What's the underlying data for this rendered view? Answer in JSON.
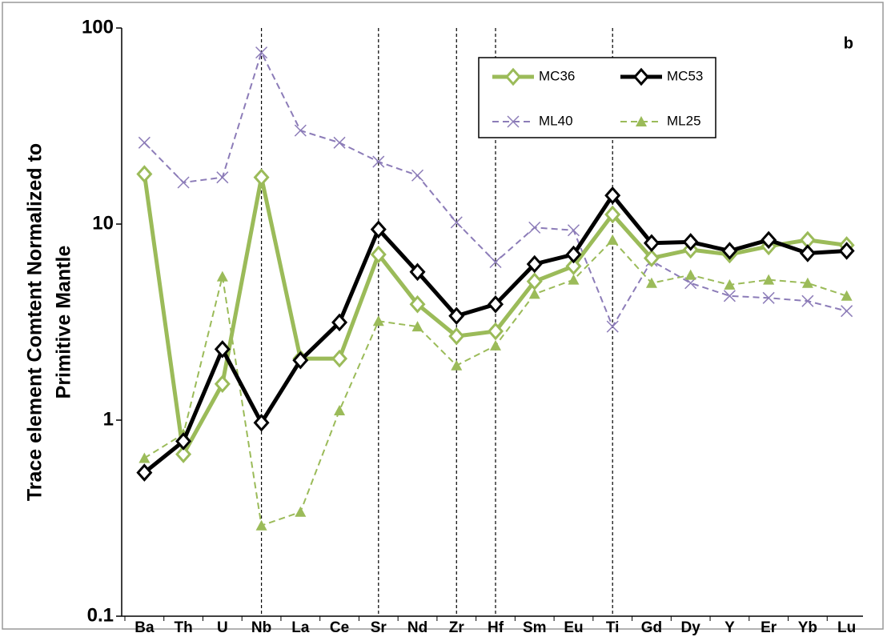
{
  "chart_data": {
    "type": "line",
    "ylabel": [
      "Trace element Comtent Normalized to",
      "Primitive Mantle"
    ],
    "annotation": "b",
    "categories": [
      "Ba",
      "Th",
      "U",
      "Nb",
      "La",
      "Ce",
      "Sr",
      "Nd",
      "Zr",
      "Hf",
      "Sm",
      "Eu",
      "Ti",
      "Gd",
      "Dy",
      "Y",
      "Er",
      "Yb",
      "Lu"
    ],
    "log_scale": true,
    "ylim": [
      0.1,
      100
    ],
    "yticks": [
      0.1,
      1,
      10,
      100
    ],
    "dashed_category_lines": [
      "Nb",
      "Sr",
      "Zr",
      "Hf",
      "Ti"
    ],
    "legend_position": "upper right",
    "series": [
      {
        "name": "MC36",
        "color": "#9bbb59",
        "dash": false,
        "marker": "diamond",
        "width": 5,
        "values": [
          18,
          0.67,
          1.53,
          17.3,
          2.06,
          2.06,
          7.0,
          3.9,
          2.68,
          2.84,
          5.1,
          6.1,
          11.2,
          6.7,
          7.4,
          7.0,
          7.7,
          8.3,
          7.8
        ]
      },
      {
        "name": "MC53",
        "color": "#000000",
        "dash": false,
        "marker": "diamond",
        "width": 5,
        "values": [
          0.54,
          0.78,
          2.3,
          0.97,
          2.02,
          3.15,
          9.4,
          5.7,
          3.4,
          3.9,
          6.25,
          7.0,
          14.0,
          8.0,
          8.1,
          7.3,
          8.3,
          7.1,
          7.3
        ]
      },
      {
        "name": "ML40",
        "color": "#8c7cb8",
        "dash": true,
        "marker": "x",
        "width": 2,
        "values": [
          26,
          16.3,
          17.3,
          75,
          30,
          26,
          20.8,
          17.7,
          10.2,
          6.4,
          9.6,
          9.3,
          3.0,
          6.5,
          5.0,
          4.3,
          4.2,
          4.05,
          3.6
        ]
      },
      {
        "name": "ML25",
        "color": "#9bbb59",
        "dash": true,
        "marker": "triangle",
        "width": 2,
        "values": [
          0.64,
          0.85,
          5.4,
          0.29,
          0.34,
          1.12,
          3.2,
          3.0,
          1.9,
          2.4,
          4.4,
          5.2,
          8.3,
          5.0,
          5.5,
          4.9,
          5.2,
          5.0,
          4.3
        ]
      }
    ]
  }
}
